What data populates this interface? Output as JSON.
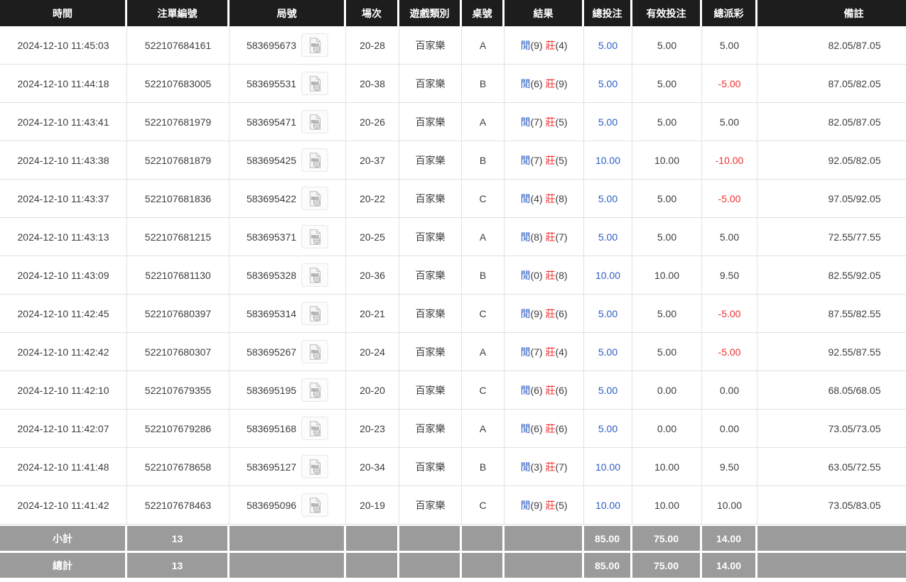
{
  "colors": {
    "header_bg": "#1d1d1d",
    "header_text": "#ffffff",
    "body_text": "#3d3d3d",
    "grid_line": "#e1e1e1",
    "footer_bg": "#9b9b9b",
    "footer_text": "#ffffff",
    "player_blue": "#2c5cc5",
    "banker_red": "#ee3131",
    "total_bet_blue": "#2c5cc5",
    "negative_payout_red": "#ee3131"
  },
  "icons": {
    "round_video": "video-replay-icon"
  },
  "table": {
    "columns": [
      "時間",
      "注單編號",
      "局號",
      "場次",
      "遊戲類別",
      "桌號",
      "結果",
      "總投注",
      "有效投注",
      "總派彩",
      "備註"
    ],
    "rows": [
      {
        "time": "2024-12-10 11:45:03",
        "bet_id": "522107684161",
        "round_id": "583695673",
        "session": "20-28",
        "game": "百家樂",
        "table": "A",
        "result": {
          "player": "閒",
          "player_points": "9",
          "banker": "莊",
          "banker_points": "4"
        },
        "total_bet": "5.00",
        "valid_bet": "5.00",
        "payout": "5.00",
        "remark": "82.05/87.05"
      },
      {
        "time": "2024-12-10 11:44:18",
        "bet_id": "522107683005",
        "round_id": "583695531",
        "session": "20-38",
        "game": "百家樂",
        "table": "B",
        "result": {
          "player": "閒",
          "player_points": "6",
          "banker": "莊",
          "banker_points": "9"
        },
        "total_bet": "5.00",
        "valid_bet": "5.00",
        "payout": "-5.00",
        "remark": "87.05/82.05"
      },
      {
        "time": "2024-12-10 11:43:41",
        "bet_id": "522107681979",
        "round_id": "583695471",
        "session": "20-26",
        "game": "百家樂",
        "table": "A",
        "result": {
          "player": "閒",
          "player_points": "7",
          "banker": "莊",
          "banker_points": "5"
        },
        "total_bet": "5.00",
        "valid_bet": "5.00",
        "payout": "5.00",
        "remark": "82.05/87.05"
      },
      {
        "time": "2024-12-10 11:43:38",
        "bet_id": "522107681879",
        "round_id": "583695425",
        "session": "20-37",
        "game": "百家樂",
        "table": "B",
        "result": {
          "player": "閒",
          "player_points": "7",
          "banker": "莊",
          "banker_points": "5"
        },
        "total_bet": "10.00",
        "valid_bet": "10.00",
        "payout": "-10.00",
        "remark": "92.05/82.05"
      },
      {
        "time": "2024-12-10 11:43:37",
        "bet_id": "522107681836",
        "round_id": "583695422",
        "session": "20-22",
        "game": "百家樂",
        "table": "C",
        "result": {
          "player": "閒",
          "player_points": "4",
          "banker": "莊",
          "banker_points": "8"
        },
        "total_bet": "5.00",
        "valid_bet": "5.00",
        "payout": "-5.00",
        "remark": "97.05/92.05"
      },
      {
        "time": "2024-12-10 11:43:13",
        "bet_id": "522107681215",
        "round_id": "583695371",
        "session": "20-25",
        "game": "百家樂",
        "table": "A",
        "result": {
          "player": "閒",
          "player_points": "8",
          "banker": "莊",
          "banker_points": "7"
        },
        "total_bet": "5.00",
        "valid_bet": "5.00",
        "payout": "5.00",
        "remark": "72.55/77.55"
      },
      {
        "time": "2024-12-10 11:43:09",
        "bet_id": "522107681130",
        "round_id": "583695328",
        "session": "20-36",
        "game": "百家樂",
        "table": "B",
        "result": {
          "player": "閒",
          "player_points": "0",
          "banker": "莊",
          "banker_points": "8"
        },
        "total_bet": "10.00",
        "valid_bet": "10.00",
        "payout": "9.50",
        "remark": "82.55/92.05"
      },
      {
        "time": "2024-12-10 11:42:45",
        "bet_id": "522107680397",
        "round_id": "583695314",
        "session": "20-21",
        "game": "百家樂",
        "table": "C",
        "result": {
          "player": "閒",
          "player_points": "9",
          "banker": "莊",
          "banker_points": "6"
        },
        "total_bet": "5.00",
        "valid_bet": "5.00",
        "payout": "-5.00",
        "remark": "87.55/82.55"
      },
      {
        "time": "2024-12-10 11:42:42",
        "bet_id": "522107680307",
        "round_id": "583695267",
        "session": "20-24",
        "game": "百家樂",
        "table": "A",
        "result": {
          "player": "閒",
          "player_points": "7",
          "banker": "莊",
          "banker_points": "4"
        },
        "total_bet": "5.00",
        "valid_bet": "5.00",
        "payout": "-5.00",
        "remark": "92.55/87.55"
      },
      {
        "time": "2024-12-10 11:42:10",
        "bet_id": "522107679355",
        "round_id": "583695195",
        "session": "20-20",
        "game": "百家樂",
        "table": "C",
        "result": {
          "player": "閒",
          "player_points": "6",
          "banker": "莊",
          "banker_points": "6"
        },
        "total_bet": "5.00",
        "valid_bet": "0.00",
        "payout": "0.00",
        "remark": "68.05/68.05"
      },
      {
        "time": "2024-12-10 11:42:07",
        "bet_id": "522107679286",
        "round_id": "583695168",
        "session": "20-23",
        "game": "百家樂",
        "table": "A",
        "result": {
          "player": "閒",
          "player_points": "6",
          "banker": "莊",
          "banker_points": "6"
        },
        "total_bet": "5.00",
        "valid_bet": "0.00",
        "payout": "0.00",
        "remark": "73.05/73.05"
      },
      {
        "time": "2024-12-10 11:41:48",
        "bet_id": "522107678658",
        "round_id": "583695127",
        "session": "20-34",
        "game": "百家樂",
        "table": "B",
        "result": {
          "player": "閒",
          "player_points": "3",
          "banker": "莊",
          "banker_points": "7"
        },
        "total_bet": "10.00",
        "valid_bet": "10.00",
        "payout": "9.50",
        "remark": "63.05/72.55"
      },
      {
        "time": "2024-12-10 11:41:42",
        "bet_id": "522107678463",
        "round_id": "583695096",
        "session": "20-19",
        "game": "百家樂",
        "table": "C",
        "result": {
          "player": "閒",
          "player_points": "9",
          "banker": "莊",
          "banker_points": "5"
        },
        "total_bet": "10.00",
        "valid_bet": "10.00",
        "payout": "10.00",
        "remark": "73.05/83.05"
      }
    ],
    "footer": [
      {
        "label": "小計",
        "count": "13",
        "total_bet": "85.00",
        "valid_bet": "75.00",
        "payout": "14.00"
      },
      {
        "label": "總計",
        "count": "13",
        "total_bet": "85.00",
        "valid_bet": "75.00",
        "payout": "14.00"
      }
    ]
  }
}
